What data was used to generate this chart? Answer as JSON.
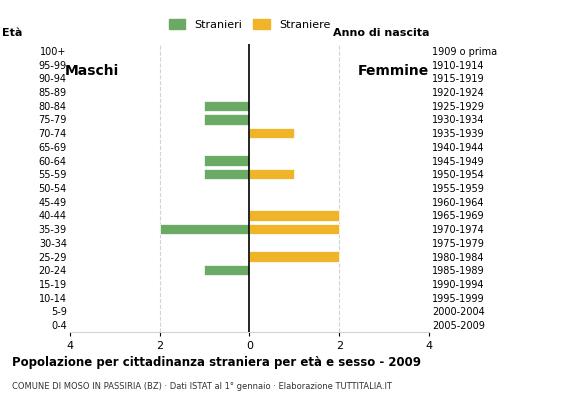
{
  "age_groups": [
    "100+",
    "95-99",
    "90-94",
    "85-89",
    "80-84",
    "75-79",
    "70-74",
    "65-69",
    "60-64",
    "55-59",
    "50-54",
    "45-49",
    "40-44",
    "35-39",
    "30-34",
    "25-29",
    "20-24",
    "15-19",
    "10-14",
    "5-9",
    "0-4"
  ],
  "birth_years": [
    "1909 o prima",
    "1910-1914",
    "1915-1919",
    "1920-1924",
    "1925-1929",
    "1930-1934",
    "1935-1939",
    "1940-1944",
    "1945-1949",
    "1950-1954",
    "1955-1959",
    "1960-1964",
    "1965-1969",
    "1970-1974",
    "1975-1979",
    "1980-1984",
    "1985-1989",
    "1990-1994",
    "1995-1999",
    "2000-2004",
    "2005-2009"
  ],
  "males": [
    0,
    0,
    0,
    0,
    -1,
    -1,
    0,
    0,
    -1,
    -1,
    0,
    0,
    0,
    -2,
    0,
    0,
    -1,
    0,
    0,
    0,
    0
  ],
  "females": [
    0,
    0,
    0,
    0,
    0,
    0,
    1,
    0,
    0,
    1,
    0,
    0,
    2,
    2,
    0,
    2,
    0,
    0,
    0,
    0,
    0
  ],
  "color_male": "#6aaa64",
  "color_female": "#f0b429",
  "title": "Popolazione per cittadinanza straniera per età e sesso - 2009",
  "subtitle": "COMUNE DI MOSO IN PASSIRIA (BZ) · Dati ISTAT al 1° gennaio · Elaborazione TUTTITALIA.IT",
  "label_eta": "Età",
  "label_anno": "Anno di nascita",
  "label_maschi": "Maschi",
  "label_femmine": "Femmine",
  "legend_stranieri": "Stranieri",
  "legend_straniere": "Straniere",
  "xlim": [
    -4,
    4
  ],
  "xticks": [
    -4,
    -2,
    0,
    2,
    4
  ],
  "xticklabels": [
    "4",
    "2",
    "0",
    "2",
    "4"
  ]
}
